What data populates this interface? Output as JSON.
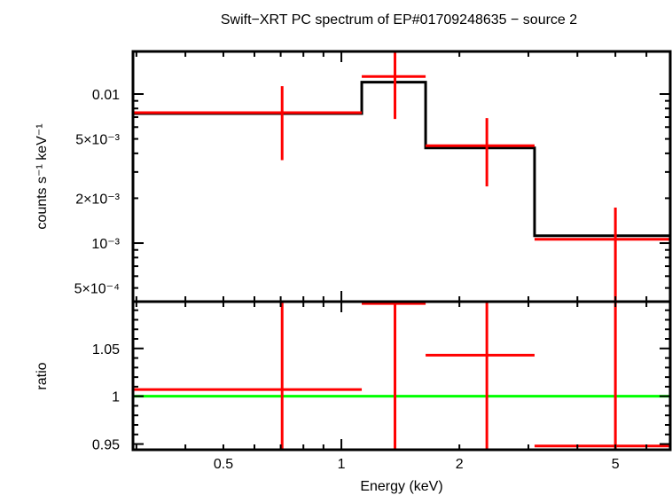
{
  "chart_data": [
    {
      "type": "line",
      "title": "Swift−XRT PC spectrum of EP#01709248635 − source 2",
      "xlabel": "",
      "ylabel": "counts s⁻¹ keV⁻¹",
      "xscale": "log",
      "yscale": "log",
      "xlim": [
        0.294,
        6.9
      ],
      "ylim": [
        0.000405,
        0.0193
      ],
      "ytick_labels": [
        {
          "value": 0.01,
          "label": "0.01"
        },
        {
          "value": 0.005,
          "label": "5×10⁻³"
        },
        {
          "value": 0.002,
          "label": "2×10⁻³"
        },
        {
          "value": 0.001,
          "label": "10⁻³"
        },
        {
          "value": 0.0005,
          "label": "5×10⁻⁴"
        }
      ],
      "data_color": "#ff0000",
      "model_color": "#000000",
      "data": [
        {
          "xlo": 0.294,
          "xhi": 1.127,
          "x": 0.706,
          "y": 0.0075,
          "ylo": 0.0036,
          "yhi": 0.0113
        },
        {
          "xlo": 1.127,
          "xhi": 1.64,
          "x": 1.37,
          "y": 0.0131,
          "ylo": 0.0068,
          "yhi": 0.02
        },
        {
          "xlo": 1.64,
          "xhi": 3.11,
          "x": 2.35,
          "y": 0.0045,
          "ylo": 0.0024,
          "yhi": 0.0069
        },
        {
          "xlo": 3.11,
          "xhi": 6.9,
          "x": 5.0,
          "y": 0.00106,
          "ylo": 0.0003,
          "yhi": 0.00173
        }
      ],
      "model": [
        {
          "xlo": 0.294,
          "xhi": 1.127,
          "y": 0.0074
        },
        {
          "xlo": 1.127,
          "xhi": 1.64,
          "y": 0.012
        },
        {
          "xlo": 1.64,
          "xhi": 3.11,
          "y": 0.00435
        },
        {
          "xlo": 3.11,
          "xhi": 6.9,
          "y": 0.00112
        }
      ]
    },
    {
      "type": "line",
      "xlabel": "Energy (keV)",
      "ylabel": "ratio",
      "xscale": "log",
      "xlim": [
        0.294,
        6.9
      ],
      "ylim": [
        0.944,
        1.099
      ],
      "xtick_labels": [
        {
          "value": 0.5,
          "label": "0.5"
        },
        {
          "value": 1,
          "label": "1"
        },
        {
          "value": 2,
          "label": "2"
        },
        {
          "value": 5,
          "label": "5"
        }
      ],
      "ytick_labels": [
        {
          "value": 1.05,
          "label": "1.05"
        },
        {
          "value": 1,
          "label": "1"
        },
        {
          "value": 0.95,
          "label": "0.95"
        }
      ],
      "reference_line": {
        "y": 1,
        "color": "#00ff00"
      },
      "data_color": "#ff0000",
      "data": [
        {
          "xlo": 0.294,
          "xhi": 1.127,
          "x": 0.706,
          "y": 1.007,
          "ylo": 0.49,
          "yhi": 1.53
        },
        {
          "xlo": 1.127,
          "xhi": 1.64,
          "x": 1.37,
          "y": 1.097,
          "ylo": 0.57,
          "yhi": 1.65
        },
        {
          "xlo": 1.64,
          "xhi": 3.11,
          "x": 2.35,
          "y": 1.043,
          "ylo": 0.55,
          "yhi": 1.59
        },
        {
          "xlo": 3.11,
          "xhi": 6.9,
          "x": 5.0,
          "y": 0.948,
          "ylo": 0.36,
          "yhi": 1.54
        }
      ]
    }
  ]
}
